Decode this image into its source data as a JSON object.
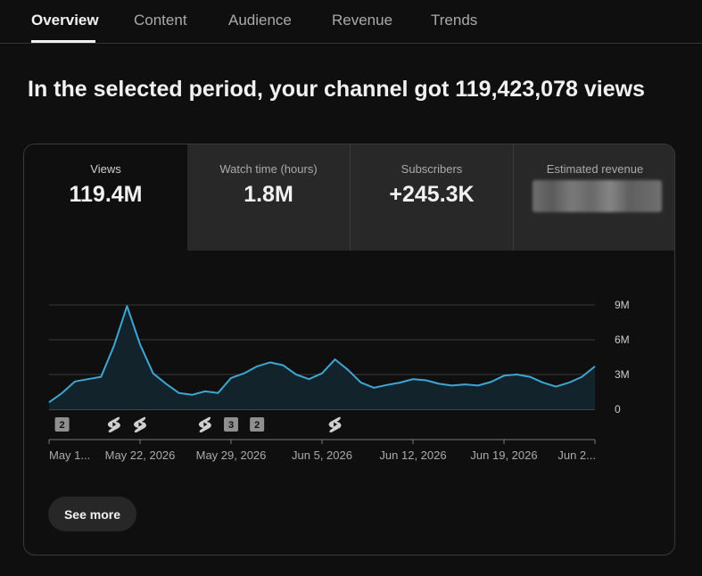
{
  "tabs": [
    {
      "label": "Overview",
      "active": true
    },
    {
      "label": "Content",
      "active": false
    },
    {
      "label": "Audience",
      "active": false
    },
    {
      "label": "Revenue",
      "active": false
    },
    {
      "label": "Trends",
      "active": false
    }
  ],
  "headline": "In the selected period, your channel got 119,423,078 views",
  "metrics": [
    {
      "label": "Views",
      "value": "119.4M"
    },
    {
      "label": "Watch time (hours)",
      "value": "1.8M"
    },
    {
      "label": "Subscribers",
      "value": "+245.3K"
    },
    {
      "label": "Estimated revenue",
      "value": ""
    }
  ],
  "colors": {
    "line": "#3ea6d3",
    "fill": "#12232c",
    "grid": "#3a3a3a",
    "badge": "#8f8f8f"
  },
  "chart_data": {
    "type": "area",
    "y_tick_labels": [
      "9M",
      "6M",
      "3M",
      "0"
    ],
    "y_ticks": [
      9,
      6,
      3,
      0
    ],
    "ylim": [
      0,
      9
    ],
    "x_tick_labels": [
      "May 1...",
      "May 22, 2026",
      "May 29, 2026",
      "Jun 5, 2026",
      "Jun 12, 2026",
      "Jun 19, 2026",
      "Jun 2..."
    ],
    "x_tick_positions": [
      0,
      7,
      14,
      21,
      28,
      35,
      42
    ],
    "values": [
      0.6,
      1.4,
      2.4,
      2.6,
      2.8,
      5.5,
      8.9,
      5.6,
      3.1,
      2.2,
      1.4,
      1.25,
      1.55,
      1.4,
      2.7,
      3.1,
      3.7,
      4.05,
      3.8,
      3.0,
      2.6,
      3.1,
      4.3,
      3.4,
      2.3,
      1.85,
      2.1,
      2.3,
      2.6,
      2.5,
      2.2,
      2.05,
      2.15,
      2.05,
      2.35,
      2.9,
      3.0,
      2.8,
      2.3,
      1.95,
      2.3,
      2.8,
      3.7
    ],
    "markers": [
      {
        "day": 1,
        "type": "badge",
        "label": "2"
      },
      {
        "day": 5,
        "type": "shorts-icon"
      },
      {
        "day": 7,
        "type": "shorts-icon"
      },
      {
        "day": 12,
        "type": "shorts-icon"
      },
      {
        "day": 14,
        "type": "badge",
        "label": "3"
      },
      {
        "day": 16,
        "type": "badge",
        "label": "2"
      },
      {
        "day": 22,
        "type": "shorts-icon"
      }
    ]
  },
  "see_more_label": "See more"
}
